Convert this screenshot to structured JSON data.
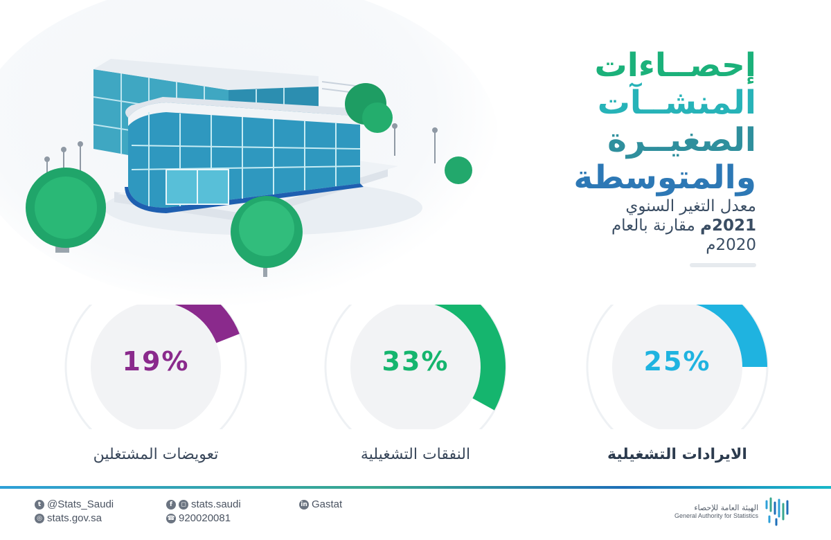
{
  "title_lines": [
    {
      "text": "إحصــاءات",
      "color": "#1bb17a"
    },
    {
      "text": "المنشــآت",
      "color": "#27b3b8"
    },
    {
      "text": "الصغيــرة",
      "color": "#2f8f9d"
    },
    {
      "text": "والمتوسطة",
      "color": "#2d78b5"
    }
  ],
  "subtitle": {
    "line1": "معدل التغير السنوي",
    "line2_bold": "2021م",
    "line2_rest": " مقارنة بالعام",
    "line3": "2020م"
  },
  "stats": [
    {
      "id": "revenue",
      "percent_text": "25%",
      "percent": 25,
      "label": "الايرادات التشغيلية",
      "color": "#1fb3e0",
      "strong": true
    },
    {
      "id": "expenses",
      "percent_text": "33%",
      "percent": 33,
      "label": "النفقات التشغيلية",
      "color": "#15b56e",
      "strong": false
    },
    {
      "id": "compensation",
      "percent_text": "19%",
      "percent": 19,
      "label": "تعويضات المشتغلين",
      "color": "#8a2a8c",
      "strong": false
    }
  ],
  "footer": {
    "twitter": "@Stats_Saudi",
    "social": "stats.saudi",
    "linkedin": "Gastat",
    "website": "stats.gov.sa",
    "phone": "920020081",
    "org_ar": "الهيئة العامة للإحصاء",
    "org_en": "General Authority for Statistics"
  },
  "icons": [
    "twitter-icon",
    "facebook-icon",
    "instagram-icon",
    "linkedin-icon",
    "globe-icon",
    "phone-icon",
    "gastat-logo-icon"
  ]
}
